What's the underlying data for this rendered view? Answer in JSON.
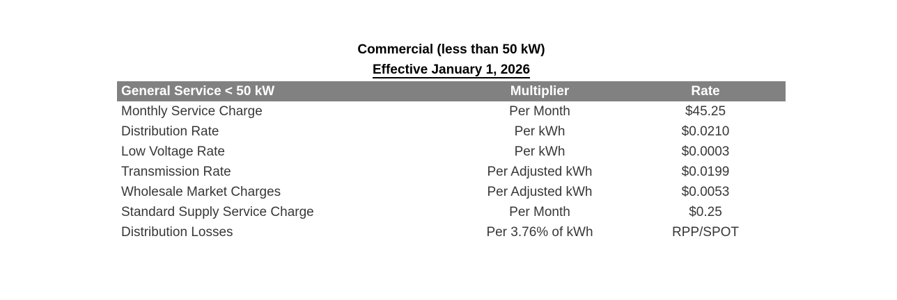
{
  "title": "Commercial (less than 50 kW)",
  "subtitle": "Effective January 1, 2026",
  "table": {
    "columns": {
      "service": "General Service < 50 kW",
      "multiplier": "Multiplier",
      "rate": "Rate"
    },
    "rows": [
      {
        "charge": "Monthly Service Charge",
        "multiplier": "Per Month",
        "rate": "$45.25"
      },
      {
        "charge": "Distribution Rate",
        "multiplier": "Per kWh",
        "rate": "$0.0210"
      },
      {
        "charge": "Low Voltage Rate",
        "multiplier": "Per kWh",
        "rate": "$0.0003"
      },
      {
        "charge": "Transmission Rate",
        "multiplier": "Per Adjusted kWh",
        "rate": "$0.0199"
      },
      {
        "charge": "Wholesale Market Charges",
        "multiplier": "Per Adjusted kWh",
        "rate": "$0.0053"
      },
      {
        "charge": "Standard Supply Service Charge",
        "multiplier": "Per Month",
        "rate": "$0.25"
      },
      {
        "charge": "Distribution Losses",
        "multiplier": "Per 3.76% of kWh",
        "rate": "RPP/SPOT"
      }
    ],
    "colors": {
      "header_bg": "#818181",
      "header_text": "#ffffff",
      "body_text": "#373737",
      "title_text": "#000000",
      "page_bg": "#ffffff"
    }
  }
}
